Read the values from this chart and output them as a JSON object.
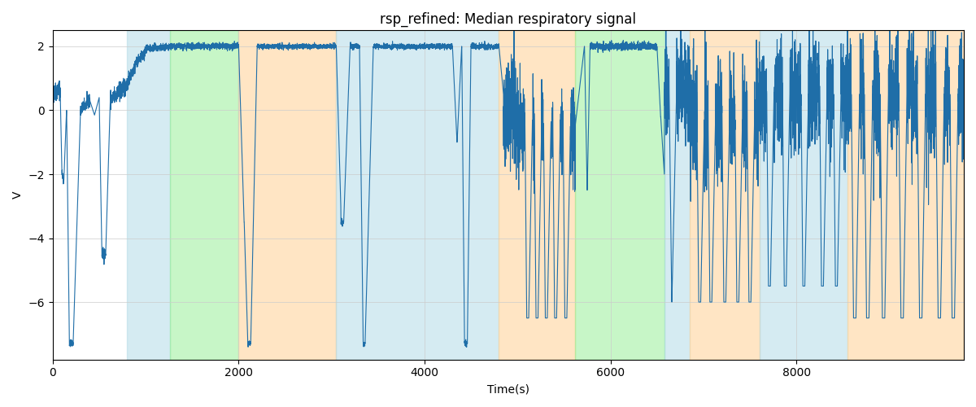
{
  "title": "rsp_refined: Median respiratory signal",
  "xlabel": "Time(s)",
  "ylabel": "V",
  "xlim": [
    0,
    9800
  ],
  "ylim": [
    -7.8,
    2.5
  ],
  "line_color": "#1f6ea8",
  "line_width": 0.8,
  "bg_color": "#ffffff",
  "grid_color": "#cccccc",
  "title_fontsize": 12,
  "spans": [
    {
      "xmin": 800,
      "xmax": 1260,
      "color": "#add8e6",
      "alpha": 0.5
    },
    {
      "xmin": 1260,
      "xmax": 2000,
      "color": "#90ee90",
      "alpha": 0.5
    },
    {
      "xmin": 2000,
      "xmax": 3050,
      "color": "#ffd59e",
      "alpha": 0.6
    },
    {
      "xmin": 3050,
      "xmax": 4800,
      "color": "#add8e6",
      "alpha": 0.5
    },
    {
      "xmin": 4800,
      "xmax": 5620,
      "color": "#ffd59e",
      "alpha": 0.6
    },
    {
      "xmin": 5620,
      "xmax": 6580,
      "color": "#90ee90",
      "alpha": 0.5
    },
    {
      "xmin": 6580,
      "xmax": 6850,
      "color": "#add8e6",
      "alpha": 0.5
    },
    {
      "xmin": 6850,
      "xmax": 7600,
      "color": "#ffd59e",
      "alpha": 0.6
    },
    {
      "xmin": 7600,
      "xmax": 8550,
      "color": "#add8e6",
      "alpha": 0.5
    },
    {
      "xmin": 8550,
      "xmax": 9800,
      "color": "#ffd59e",
      "alpha": 0.6
    }
  ],
  "yticks": [
    2,
    0,
    -2,
    -4,
    -6
  ],
  "xticks": [
    0,
    2000,
    4000,
    6000,
    8000
  ]
}
